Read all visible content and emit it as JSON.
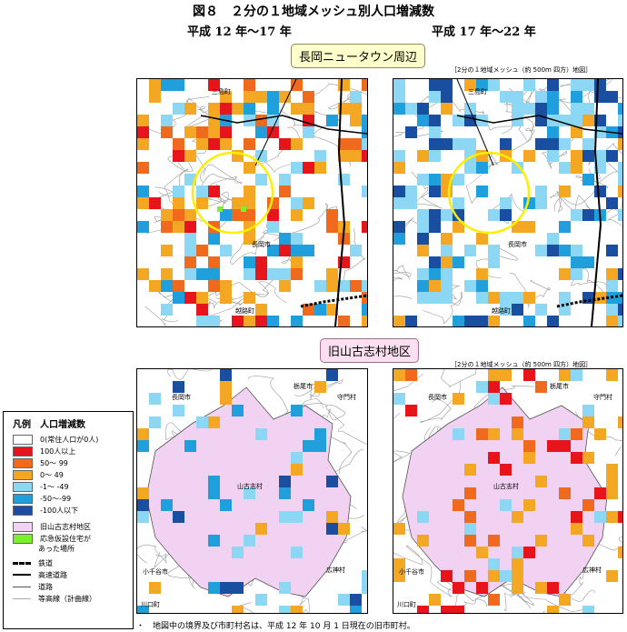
{
  "title": "図８　２分の１地域メッシュ別人口増減数",
  "period_left": "平成 12 年～17 年",
  "period_right": "平成 17 年～22 年",
  "callout_top": "長岡ニュータウン周辺",
  "callout_bottom": "旧山古志村地区",
  "mesh_note_top": "［2分の１地域メッシュ（約 500m 四方）地図］",
  "mesh_note_bottom": "［2分の１地域メッシュ（約 500m 四方）地図］",
  "top_labels": {
    "sanjo": "三島町",
    "nagaoka": "長岡市",
    "koshiji": "越路町"
  },
  "bottom_labels": {
    "nagaoka": "長岡市",
    "tochio": "栃尾市",
    "moriwaki": "守門村",
    "yamakoshi": "山古志村",
    "ojiya": "小千谷市",
    "hirokami": "広神村",
    "kawaguchi": "川口町"
  },
  "legend": {
    "title": "凡例　人口増減数",
    "items": [
      {
        "label": "0(常住人口が0人)",
        "color": "#ffffff"
      },
      {
        "label": "100人以上",
        "color": "#e8141c"
      },
      {
        "label": "50～ 99",
        "color": "#f06a1e"
      },
      {
        "label": "0～ 49",
        "color": "#f4a722"
      },
      {
        "label": "-1～ -49",
        "color": "#8cd8f4"
      },
      {
        "label": "-50～-99",
        "color": "#1fa0dc"
      },
      {
        "label": "-100人以下",
        "color": "#1a4ea0"
      },
      {
        "label": "旧山古志村地区",
        "color": "#f2d2f2"
      },
      {
        "label": "応急仮設住宅が",
        "label2": "あった場所",
        "color": "#7cf028"
      }
    ],
    "lines": [
      {
        "label": "鉄道",
        "style": "rail"
      },
      {
        "label": "高速道路",
        "style": "highway"
      },
      {
        "label": "道路",
        "style": "road"
      },
      {
        "label": "等高線（計曲線）",
        "style": "contour"
      }
    ]
  },
  "footer": "・　地図中の境界及び市町村名は、平成 12 年 10 月 1 日現在の旧市町村。",
  "colors": {
    "red": "#e8141c",
    "darkorange": "#f06a1e",
    "orange": "#f4a722",
    "lightblue": "#8cd8f4",
    "blue": "#1fa0dc",
    "navy": "#1a4ea0",
    "pink": "#f2d2f2",
    "green": "#7cf028",
    "circle": "#ffee00"
  }
}
